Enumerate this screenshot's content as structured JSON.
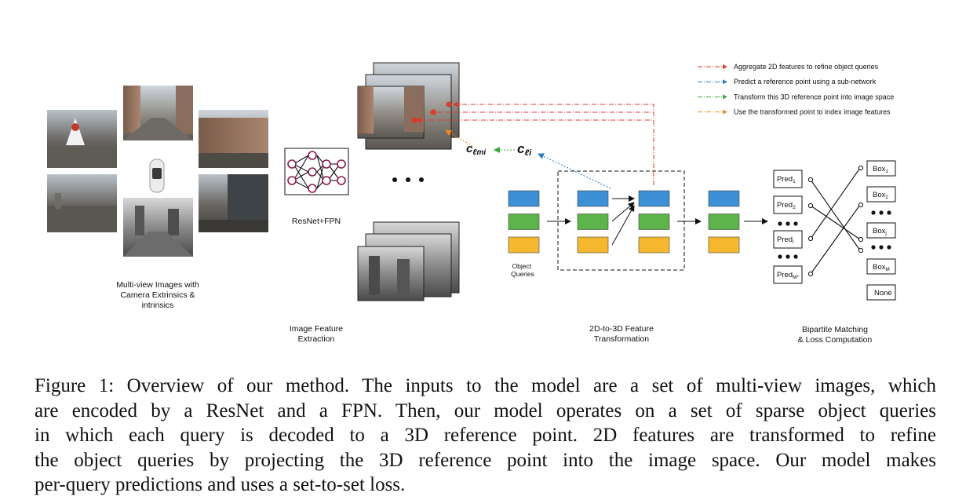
{
  "legend": [
    {
      "label": "Aggregate 2D features to refine object queries",
      "color": "#d93a2b"
    },
    {
      "label": "Predict a reference point using a sub-network",
      "color": "#2b7bc4"
    },
    {
      "label": "Transform this 3D reference point into image space",
      "color": "#3aa63a"
    },
    {
      "label": "Use the transformed point to index image features",
      "color": "#f08a1e"
    }
  ],
  "labels": {
    "multiview": [
      "Multi-view Images with",
      "Camera Extrinsics &",
      "intrinsics"
    ],
    "backbone": "ResNet+FPN",
    "feature_extraction": [
      "Image Feature",
      "Extraction"
    ],
    "transformation": [
      "2D-to-3D Feature",
      "Transformation"
    ],
    "matching": [
      "Bipartite Matching",
      "& Loss Computation"
    ],
    "object_queries": [
      "Object",
      "Queries"
    ],
    "c_lmi": "c",
    "c_lmi_sub": "ℓmi",
    "c_li": "c",
    "c_li_sub": "ℓi",
    "ellipsis": "• • •"
  },
  "predictions": [
    {
      "base": "Pred",
      "sub": "1"
    },
    {
      "base": "Pred",
      "sub": "2"
    },
    {
      "base": "Pred",
      "sub": "i"
    },
    {
      "base": "Pred",
      "sub": "M*"
    }
  ],
  "boxes": [
    {
      "base": "Box",
      "sub": "1"
    },
    {
      "base": "Box",
      "sub": "2"
    },
    {
      "base": "Box",
      "sub": "j"
    },
    {
      "base": "Box",
      "sub": "M"
    },
    {
      "base": "None",
      "sub": ""
    }
  ],
  "colors": {
    "blue": "#3d8fd6",
    "green": "#5cb44a",
    "yellow": "#f5b82e"
  },
  "caption": [
    "Figure 1: Overview of our method. The inputs to the model are a set of multi-view images, which",
    "are encoded by a ResNet and a FPN. Then, our model operates on a set of sparse object queries",
    "in which each query is decoded to a 3D reference point.  2D features are transformed to refine",
    "the object queries by projecting the 3D reference point into the image space.  Our model makes",
    "per-query predictions and uses a set-to-set loss."
  ]
}
